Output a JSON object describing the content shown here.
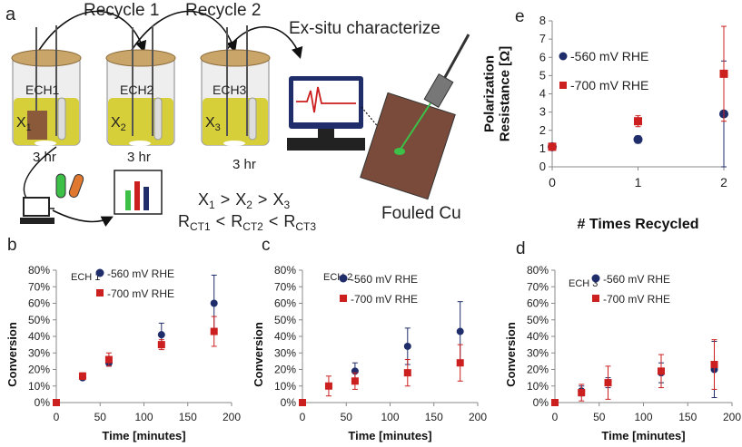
{
  "panel_a": {
    "label": "a",
    "recycle1": "Recycle 1",
    "recycle2": "Recycle 2",
    "exsitu": "Ex-situ characterize",
    "cells": [
      {
        "name": "ECH1",
        "x_var": "X",
        "x_sub": "1",
        "time": "3 hr"
      },
      {
        "name": "ECH2",
        "x_var": "X",
        "x_sub": "2",
        "time": "3 hr"
      },
      {
        "name": "ECH3",
        "x_var": "X",
        "x_sub": "3",
        "time": "3 hr"
      }
    ],
    "fouled": "Fouled Cu",
    "eq1": {
      "v": "X",
      "s1": "1",
      "s2": "2",
      "s3": "3",
      "op": ">"
    },
    "eq2": {
      "v": "R",
      "s1": "CT1",
      "s2": "CT2",
      "s3": "CT3",
      "op": "<"
    },
    "colors": {
      "liquid": "#d6cf3a",
      "cap": "#c9a56a",
      "sample": "#8a5a3a",
      "test_green": "#3cc048",
      "test_orange": "#e07830"
    }
  },
  "chart_data": [
    {
      "id": "b",
      "panel_label": "b",
      "type": "scatter",
      "inset": "ECH 1",
      "xlabel": "Time [minutes]",
      "ylabel": "Conversion",
      "xlim": [
        0,
        200
      ],
      "ylim": [
        0,
        0.8
      ],
      "xticks": [
        "0",
        "50",
        "100",
        "150",
        "200"
      ],
      "yticks": [
        "0%",
        "10%",
        "20%",
        "30%",
        "40%",
        "50%",
        "60%",
        "70%",
        "80%"
      ],
      "legend_position": "top-right",
      "series": [
        {
          "name": "-560 mV RHE",
          "color": "#1f2d6b",
          "marker": "circle",
          "x": [
            0,
            30,
            60,
            120,
            180
          ],
          "y": [
            0,
            0.15,
            0.24,
            0.41,
            0.6
          ],
          "err": [
            0,
            0.01,
            0.02,
            0.07,
            0.17
          ]
        },
        {
          "name": "-700 mV RHE",
          "color": "#cc1f1f",
          "marker": "square",
          "x": [
            0,
            30,
            60,
            120,
            180
          ],
          "y": [
            0,
            0.16,
            0.26,
            0.35,
            0.43
          ],
          "err": [
            0,
            0.02,
            0.04,
            0.03,
            0.09
          ]
        }
      ]
    },
    {
      "id": "c",
      "panel_label": "c",
      "type": "scatter",
      "inset": "ECH 2",
      "xlabel": "Time [minutes]",
      "ylabel": "Conversion",
      "xlim": [
        0,
        200
      ],
      "ylim": [
        0,
        0.8
      ],
      "xticks": [
        "0",
        "50",
        "100",
        "150",
        "200"
      ],
      "yticks": [
        "0%",
        "10%",
        "20%",
        "30%",
        "40%",
        "50%",
        "60%",
        "70%",
        "80%"
      ],
      "legend_position": "top-right",
      "series": [
        {
          "name": "-560 mV RHE",
          "color": "#1f2d6b",
          "marker": "circle",
          "x": [
            0,
            60,
            120,
            180
          ],
          "y": [
            0,
            0.19,
            0.34,
            0.43
          ],
          "err": [
            0,
            0.05,
            0.11,
            0.18
          ]
        },
        {
          "name": "-700 mV RHE",
          "color": "#cc1f1f",
          "marker": "square",
          "x": [
            0,
            30,
            60,
            120,
            180
          ],
          "y": [
            0,
            0.1,
            0.13,
            0.18,
            0.24
          ],
          "err": [
            0,
            0.06,
            0.05,
            0.08,
            0.11
          ]
        }
      ]
    },
    {
      "id": "d",
      "panel_label": "d",
      "type": "scatter",
      "inset": "ECH 3",
      "xlabel": "Time [minutes]",
      "ylabel": "Conversion",
      "xlim": [
        0,
        200
      ],
      "ylim": [
        0,
        0.8
      ],
      "xticks": [
        "0",
        "50",
        "100",
        "150",
        "200"
      ],
      "yticks": [
        "0%",
        "10%",
        "20%",
        "30%",
        "40%",
        "50%",
        "60%",
        "70%",
        "80%"
      ],
      "legend_position": "top-right",
      "series": [
        {
          "name": "-560 mV RHE",
          "color": "#1f2d6b",
          "marker": "circle",
          "x": [
            0,
            30,
            60,
            120,
            180
          ],
          "y": [
            0,
            0.07,
            0.12,
            0.18,
            0.2
          ],
          "err": [
            0,
            0.03,
            0.03,
            0.06,
            0.17
          ]
        },
        {
          "name": "-700 mV RHE",
          "color": "#cc1f1f",
          "marker": "square",
          "x": [
            0,
            30,
            60,
            120,
            180
          ],
          "y": [
            0,
            0.06,
            0.12,
            0.19,
            0.23
          ],
          "err": [
            0,
            0.05,
            0.1,
            0.1,
            0.15
          ]
        }
      ]
    },
    {
      "id": "e",
      "panel_label": "e",
      "type": "scatter",
      "xlabel": "# Times Recycled",
      "ylabel": [
        "Polarization",
        "Resistance [Ω]"
      ],
      "xlim": [
        0,
        2
      ],
      "ylim": [
        0,
        8
      ],
      "xticks": [
        "0",
        "1",
        "2"
      ],
      "yticks": [
        "0",
        "1",
        "2",
        "3",
        "4",
        "5",
        "6",
        "7",
        "8"
      ],
      "legend_position": "top-left",
      "series": [
        {
          "name": "-560 mV RHE",
          "color": "#1f2d6b",
          "marker": "circle",
          "x": [
            0,
            1,
            2
          ],
          "y": [
            1.1,
            1.5,
            2.9
          ],
          "err": [
            0.05,
            0.2,
            2.9
          ]
        },
        {
          "name": "-700 mV RHE",
          "color": "#cc1f1f",
          "marker": "square",
          "x": [
            0,
            1,
            2
          ],
          "y": [
            1.1,
            2.5,
            5.1
          ],
          "err": [
            0.05,
            0.3,
            2.6
          ]
        }
      ]
    }
  ]
}
